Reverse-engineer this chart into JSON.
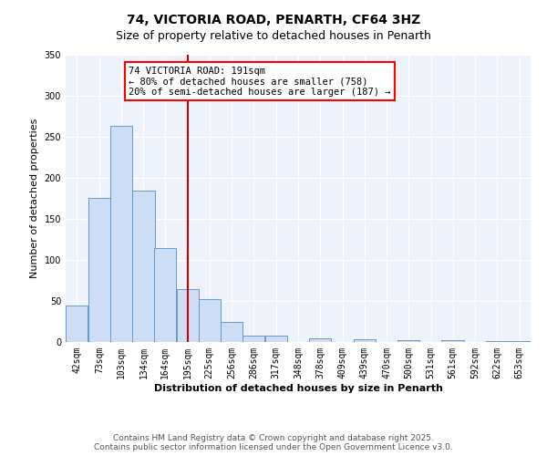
{
  "title": "74, VICTORIA ROAD, PENARTH, CF64 3HZ",
  "subtitle": "Size of property relative to detached houses in Penarth",
  "bar_centers": [
    42,
    73,
    103,
    134,
    164,
    195,
    225,
    256,
    286,
    317,
    348,
    378,
    409,
    439,
    470,
    500,
    531,
    561,
    592,
    622,
    653
  ],
  "bar_heights": [
    44,
    176,
    263,
    185,
    114,
    65,
    52,
    25,
    8,
    8,
    0,
    4,
    0,
    3,
    0,
    2,
    0,
    2,
    0,
    1,
    1
  ],
  "bin_width": 31,
  "bar_facecolor": "#ccddf5",
  "bar_edgecolor": "#6699cc",
  "vline_x": 195,
  "vline_color": "#cc0000",
  "xlabel": "Distribution of detached houses by size in Penarth",
  "ylabel": "Number of detached properties",
  "ylim": [
    0,
    350
  ],
  "yticks": [
    0,
    50,
    100,
    150,
    200,
    250,
    300,
    350
  ],
  "xtick_labels": [
    "42sqm",
    "73sqm",
    "103sqm",
    "134sqm",
    "164sqm",
    "195sqm",
    "225sqm",
    "256sqm",
    "286sqm",
    "317sqm",
    "348sqm",
    "378sqm",
    "409sqm",
    "439sqm",
    "470sqm",
    "500sqm",
    "531sqm",
    "561sqm",
    "592sqm",
    "622sqm",
    "653sqm"
  ],
  "annotation_line1": "74 VICTORIA ROAD: 191sqm",
  "annotation_line2": "← 80% of detached houses are smaller (758)",
  "annotation_line3": "20% of semi-detached houses are larger (187) →",
  "footer_line1": "Contains HM Land Registry data © Crown copyright and database right 2025.",
  "footer_line2": "Contains public sector information licensed under the Open Government Licence v3.0.",
  "bg_color": "#eef2fb",
  "title_fontsize": 10,
  "subtitle_fontsize": 9,
  "axis_label_fontsize": 8,
  "tick_fontsize": 7,
  "annotation_fontsize": 7.5,
  "footer_fontsize": 6.5
}
